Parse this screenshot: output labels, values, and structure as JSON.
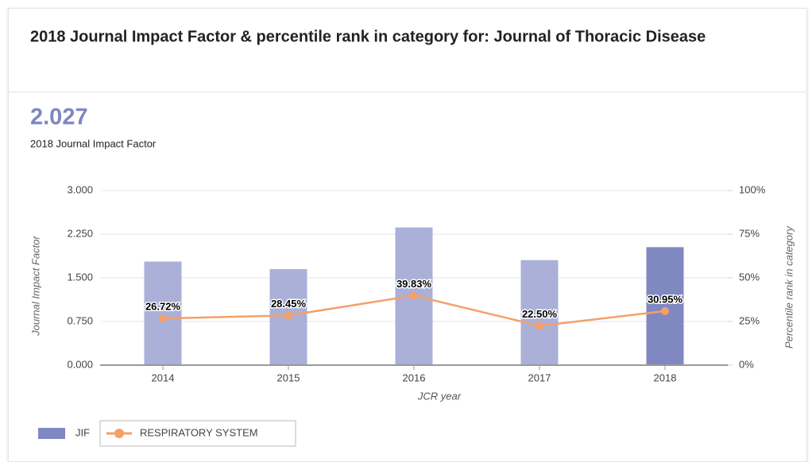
{
  "chart_data": {
    "type": "bar_line",
    "title": "2018 Journal Impact Factor & percentile rank in category for: Journal of Thoracic Disease",
    "headline": "2.027",
    "subtitle": "2018 Journal Impact Factor",
    "categories": [
      "2014",
      "2015",
      "2016",
      "2017",
      "2018"
    ],
    "series": [
      {
        "name": "JIF",
        "color": "#8088c2",
        "colors": [
          "#aab0d8",
          "#aab0d8",
          "#aab0d8",
          "#aab0d8",
          "#8088c2"
        ],
        "values": [
          1.779,
          1.649,
          2.365,
          1.804,
          2.027
        ]
      },
      {
        "name": "RESPIRATORY SYSTEM",
        "color": "#f4a06a",
        "axis": "y2",
        "values": [
          26.72,
          28.45,
          39.83,
          22.5,
          30.95
        ],
        "value_labels": [
          "26.72%",
          "28.45%",
          "39.83%",
          "22.50%",
          "30.95%"
        ]
      }
    ],
    "ylim": [
      0,
      3
    ],
    "yticks": [
      {
        "value": 0,
        "label": "0.000"
      },
      {
        "value": 0.75,
        "label": "0.750"
      },
      {
        "value": 1.5,
        "label": "1.500"
      },
      {
        "value": 2.25,
        "label": "2.250"
      },
      {
        "value": 3,
        "label": "3.000"
      }
    ],
    "y2lim": [
      0,
      100
    ],
    "y2ticks": [
      {
        "value": 0,
        "label": "0%"
      },
      {
        "value": 25,
        "label": "25%"
      },
      {
        "value": 50,
        "label": "50%"
      },
      {
        "value": 75,
        "label": "75%"
      },
      {
        "value": 100,
        "label": "100%"
      }
    ],
    "ylabel": "Journal Impact Factor",
    "y2label": "Percentile rank in category",
    "xlabel": "JCR year",
    "grid": true,
    "legend": "bottom-left"
  }
}
